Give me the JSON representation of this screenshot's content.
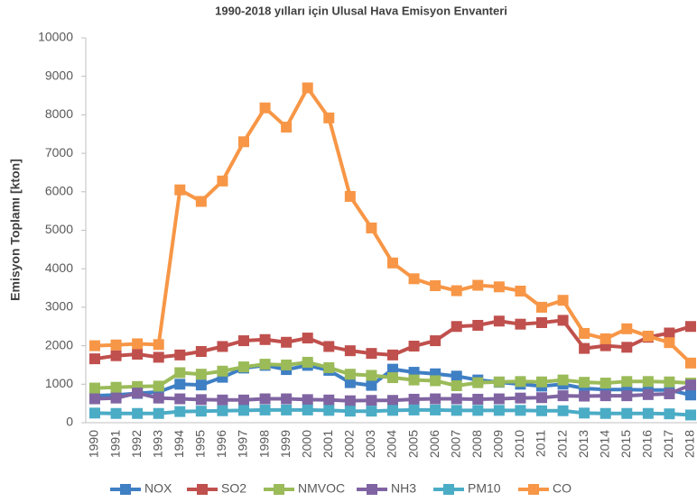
{
  "chart_data": {
    "type": "line",
    "title": "1990-2018 yılları için Ulusal Hava Emisyon  Envanteri",
    "y_label": "Emisyon Toplamı [kton]",
    "categories": [
      "1990",
      "1991",
      "1992",
      "1993",
      "1994",
      "1995",
      "1996",
      "1997",
      "1998",
      "1999",
      "2000",
      "2001",
      "2002",
      "2003",
      "2004",
      "2005",
      "2006",
      "2007",
      "2008",
      "2009",
      "2010",
      "2011",
      "2012",
      "2013",
      "2014",
      "2015",
      "2016",
      "2017",
      "2018"
    ],
    "series": [
      {
        "name": "NOX",
        "color": "#3f7fc4",
        "values": [
          700,
          720,
          760,
          800,
          1000,
          980,
          1180,
          1420,
          1490,
          1380,
          1490,
          1360,
          1040,
          970,
          1390,
          1310,
          1270,
          1210,
          1110,
          1050,
          1000,
          950,
          1000,
          890,
          860,
          860,
          850,
          850,
          720
        ]
      },
      {
        "name": "SO2",
        "color": "#c0504d",
        "values": [
          1660,
          1740,
          1780,
          1700,
          1760,
          1850,
          1980,
          2130,
          2160,
          2090,
          2200,
          1980,
          1870,
          1800,
          1760,
          1990,
          2130,
          2500,
          2530,
          2640,
          2560,
          2600,
          2660,
          1930,
          2000,
          1960,
          2220,
          2330,
          2500
        ]
      },
      {
        "name": "NMVOC",
        "color": "#9bbb59",
        "values": [
          900,
          920,
          940,
          950,
          1300,
          1260,
          1340,
          1450,
          1520,
          1500,
          1570,
          1430,
          1260,
          1230,
          1170,
          1110,
          1090,
          960,
          1040,
          1060,
          1070,
          1060,
          1110,
          1050,
          1030,
          1070,
          1070,
          1060,
          1030
        ]
      },
      {
        "name": "NH3",
        "color": "#8064a2",
        "values": [
          620,
          640,
          770,
          640,
          620,
          600,
          590,
          590,
          620,
          620,
          600,
          590,
          570,
          580,
          580,
          610,
          620,
          620,
          610,
          620,
          640,
          650,
          700,
          690,
          700,
          700,
          730,
          750,
          980
        ]
      },
      {
        "name": "PM10",
        "color": "#4bacc6",
        "values": [
          250,
          240,
          240,
          240,
          290,
          300,
          310,
          320,
          330,
          330,
          330,
          320,
          300,
          300,
          320,
          330,
          330,
          320,
          320,
          320,
          320,
          310,
          310,
          250,
          240,
          240,
          240,
          230,
          200
        ]
      },
      {
        "name": "CO",
        "color": "#f79646",
        "values": [
          2000,
          2020,
          2050,
          2030,
          6050,
          5750,
          6280,
          7300,
          8180,
          7680,
          8700,
          7920,
          5880,
          5060,
          4150,
          3740,
          3560,
          3430,
          3570,
          3530,
          3420,
          3000,
          3180,
          2320,
          2180,
          2440,
          2250,
          2080,
          1550
        ]
      }
    ],
    "ylim": [
      0,
      10000
    ],
    "yticks": [
      0,
      1000,
      2000,
      3000,
      4000,
      5000,
      6000,
      7000,
      8000,
      9000,
      10000
    ],
    "grid": false,
    "legend": "bottom"
  }
}
